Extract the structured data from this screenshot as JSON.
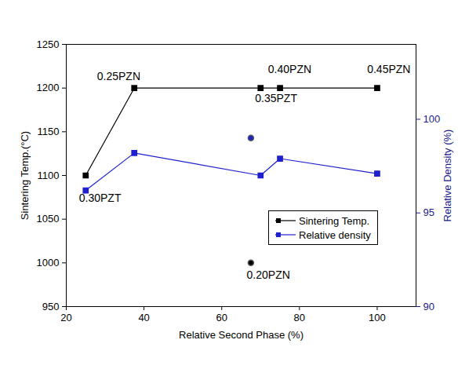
{
  "chart_data": {
    "type": "line",
    "xlabel": "Relative Second Phase (%)",
    "ylabel": "Sintering Temp.(°C)",
    "y2label": "Relative Density (%)",
    "x": [
      25,
      37.5,
      70,
      75,
      100
    ],
    "series": [
      {
        "name": "Sintering Temp.",
        "color": "#000000",
        "type": "line",
        "marker": "square",
        "values": [
          1100,
          1200,
          1200,
          1200,
          1200
        ]
      },
      {
        "name": "Relative density",
        "color": "#1f1fd0",
        "type": "line",
        "marker": "square",
        "axis": "y2",
        "values": [
          96.2,
          98.2,
          97.0,
          97.9,
          97.1
        ]
      },
      {
        "color": "#000000",
        "type": "scatter",
        "marker": "circle",
        "x": [
          67.5
        ],
        "values": [
          1000
        ]
      },
      {
        "color": "#1f1fd0",
        "type": "scatter",
        "marker": "circle",
        "axis": "y2",
        "x": [
          67.5
        ],
        "values": [
          99.0
        ]
      }
    ],
    "annotations": [
      {
        "text": "0.30PZT",
        "x": 28.7,
        "y": 1074
      },
      {
        "text": "0.25PZN",
        "x": 33.5,
        "y": 1213
      },
      {
        "text": "0.35PZT",
        "x": 74,
        "y": 1188
      },
      {
        "text": "0.40PZN",
        "x": 77.5,
        "y": 1221
      },
      {
        "text": "0.45PZN",
        "x": 103,
        "y": 1221
      },
      {
        "text": "0.20PZN",
        "x": 72,
        "y": 986
      }
    ],
    "xlim": [
      20,
      110
    ],
    "xticks": [
      20,
      40,
      60,
      80,
      100
    ],
    "ylim": [
      950,
      1250
    ],
    "yticks": [
      950,
      1000,
      1050,
      1100,
      1150,
      1200,
      1250
    ],
    "y2lim": [
      90,
      104
    ],
    "y2ticks": [
      90,
      95,
      100
    ],
    "grid": false,
    "legend": "right"
  }
}
